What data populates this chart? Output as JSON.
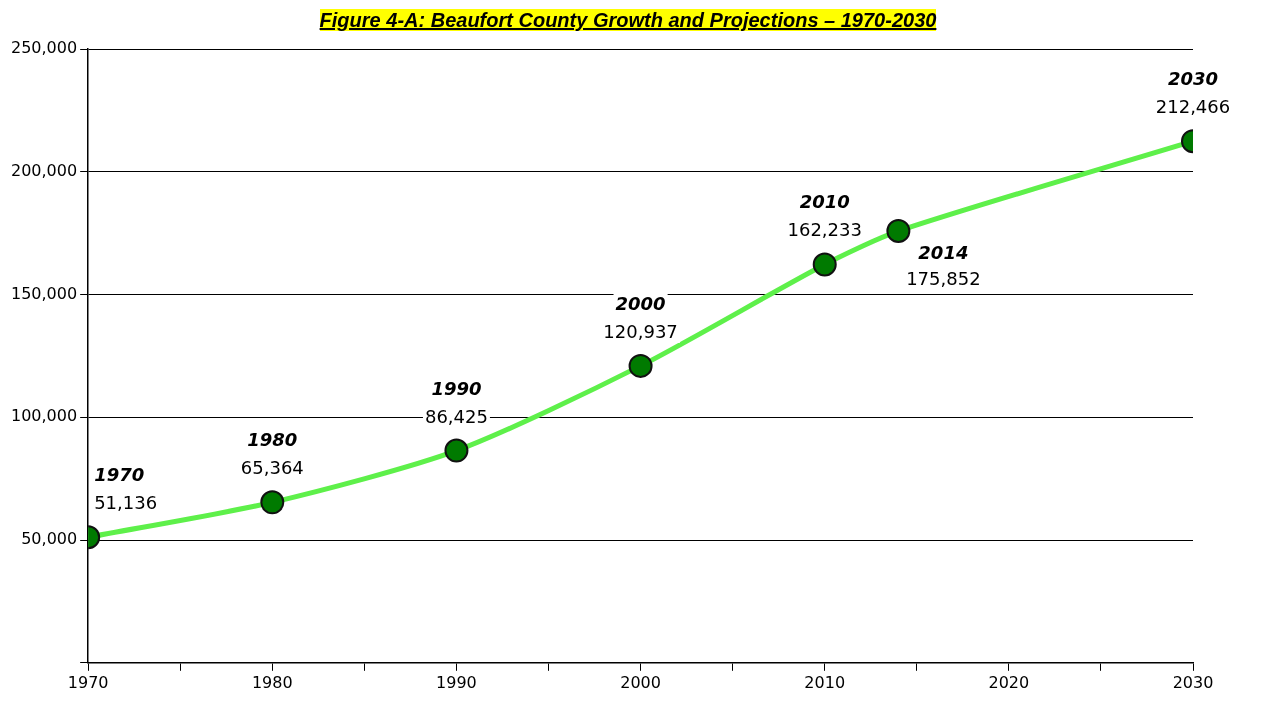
{
  "chart_data": {
    "type": "line",
    "title": "Figure 4-A: Beaufort County Growth and Projections – 1970-2030",
    "x": [
      1970,
      1980,
      1990,
      2000,
      2010,
      2014,
      2030
    ],
    "series": [
      {
        "color": "#5ef04a",
        "values": [
          51136,
          65364,
          86425,
          120937,
          162233,
          175852,
          212466
        ],
        "value_labels": [
          "51,136",
          "65,364",
          "86,425",
          "120,937",
          "162,233",
          "175,852",
          "212,466"
        ]
      }
    ],
    "annotations": [
      {
        "text": "1970",
        "x": 1970,
        "y": 51136
      },
      {
        "text": "1980",
        "x": 1980,
        "y": 65364
      },
      {
        "text": "1990",
        "x": 1990,
        "y": 86425
      },
      {
        "text": "2000",
        "x": 2000,
        "y": 120937
      },
      {
        "text": "2010",
        "x": 2010,
        "y": 162233
      },
      {
        "text": "2014",
        "x": 2014,
        "y": 175852
      },
      {
        "text": "2030",
        "x": 2030,
        "y": 212466
      }
    ],
    "xlim": [
      1970,
      2030
    ],
    "xticks": [
      1970,
      {
        "value": 1975,
        "label": null
      },
      1980,
      {
        "value": 1985,
        "label": null
      },
      1990,
      {
        "value": 1995,
        "label": null
      },
      2000,
      {
        "value": 2005,
        "label": null
      },
      2010,
      {
        "value": 2015,
        "label": null
      },
      2020,
      {
        "value": 2025,
        "label": null
      },
      2030
    ],
    "ylim": [
      0,
      250000
    ],
    "yticks": [
      {
        "value": 0,
        "label": null
      },
      {
        "value": 50000,
        "label": "50,000"
      },
      {
        "value": 100000,
        "label": "100,000"
      },
      {
        "value": 150000,
        "label": "150,000"
      },
      {
        "value": 200000,
        "label": "200,000"
      },
      {
        "value": 250000,
        "label": "250,000"
      }
    ],
    "grid": "y",
    "marker": "circle",
    "line_style": "solid",
    "legend": false
  }
}
